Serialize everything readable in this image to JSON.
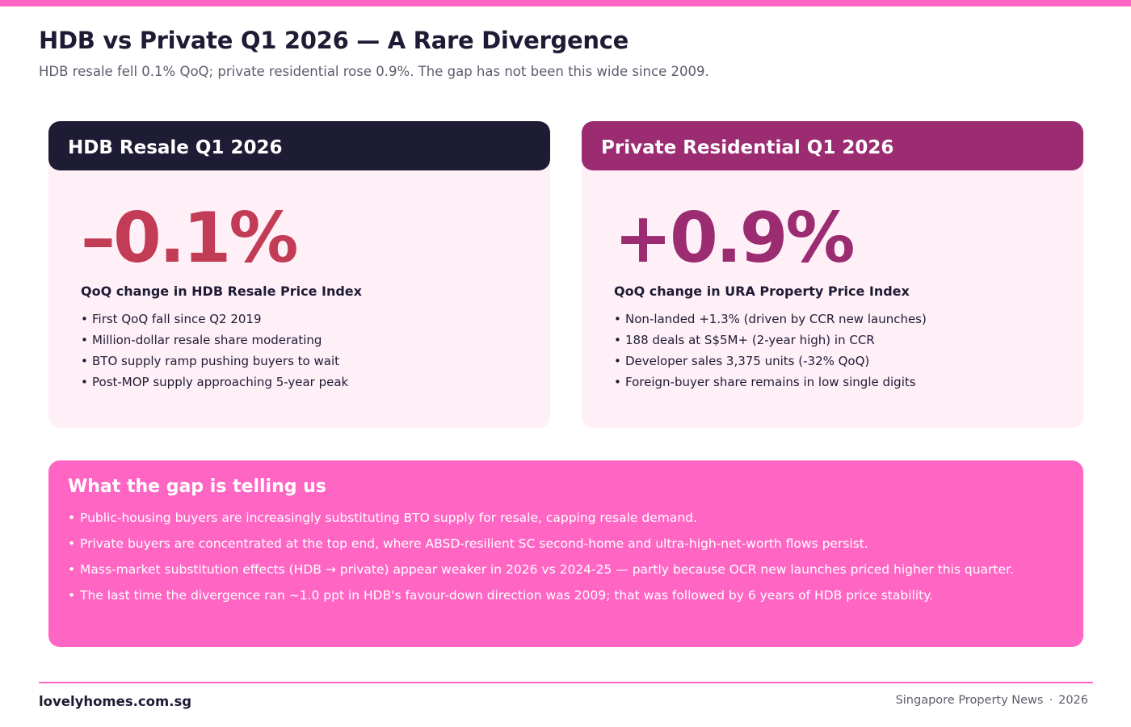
{
  "accent_color": "#ff66c4",
  "header": {
    "title": "HDB vs Private Q1 2026 — A Rare Divergence",
    "subtitle": "HDB resale fell 0.1% QoQ; private residential rose 0.9%. The gap has not been this wide since 2009."
  },
  "cards": [
    {
      "heading": "HDB Resale Q1 2026",
      "value": "–0.1%",
      "label": "QoQ change in HDB Resale Price Index",
      "color": "#c23c55",
      "header_color": "#1e1b34",
      "bullets": [
        "First QoQ fall since Q2 2019",
        "Million-dollar resale share moderating",
        "BTO supply ramp pushing buyers to wait",
        "Post-MOP supply approaching 5-year peak"
      ]
    },
    {
      "heading": "Private Residential Q1 2026",
      "value": "+0.9%",
      "label": "QoQ change in URA Property Price Index",
      "color": "#9b2c72",
      "header_color": "#9b2c72",
      "bullets": [
        "Non-landed +1.3% (driven by CCR new launches)",
        "188 deals at S$5M+ (2-year high) in CCR",
        "Developer sales 3,375 units (-32% QoQ)",
        "Foreign-buyer share remains in low single digits"
      ]
    }
  ],
  "insight": {
    "title": "What the gap is telling us",
    "bullets": [
      "Public-housing buyers are increasingly substituting BTO supply for resale, capping resale demand.",
      "Private buyers are concentrated at the top end, where ABSD-resilient SC second-home and ultra-high-net-worth flows persist.",
      "Mass-market substitution effects (HDB → private) appear weaker in 2026 vs 2024-25 — partly because OCR new launches priced higher this quarter.",
      "The last time the divergence ran ~1.0 ppt in HDB's favour-down direction was 2009; that was followed by 6 years of HDB price stability."
    ]
  },
  "footer": {
    "brand": "lovelyhomes.com.sg",
    "publication": "Singapore Property News",
    "separator": "·",
    "year": "2026"
  }
}
